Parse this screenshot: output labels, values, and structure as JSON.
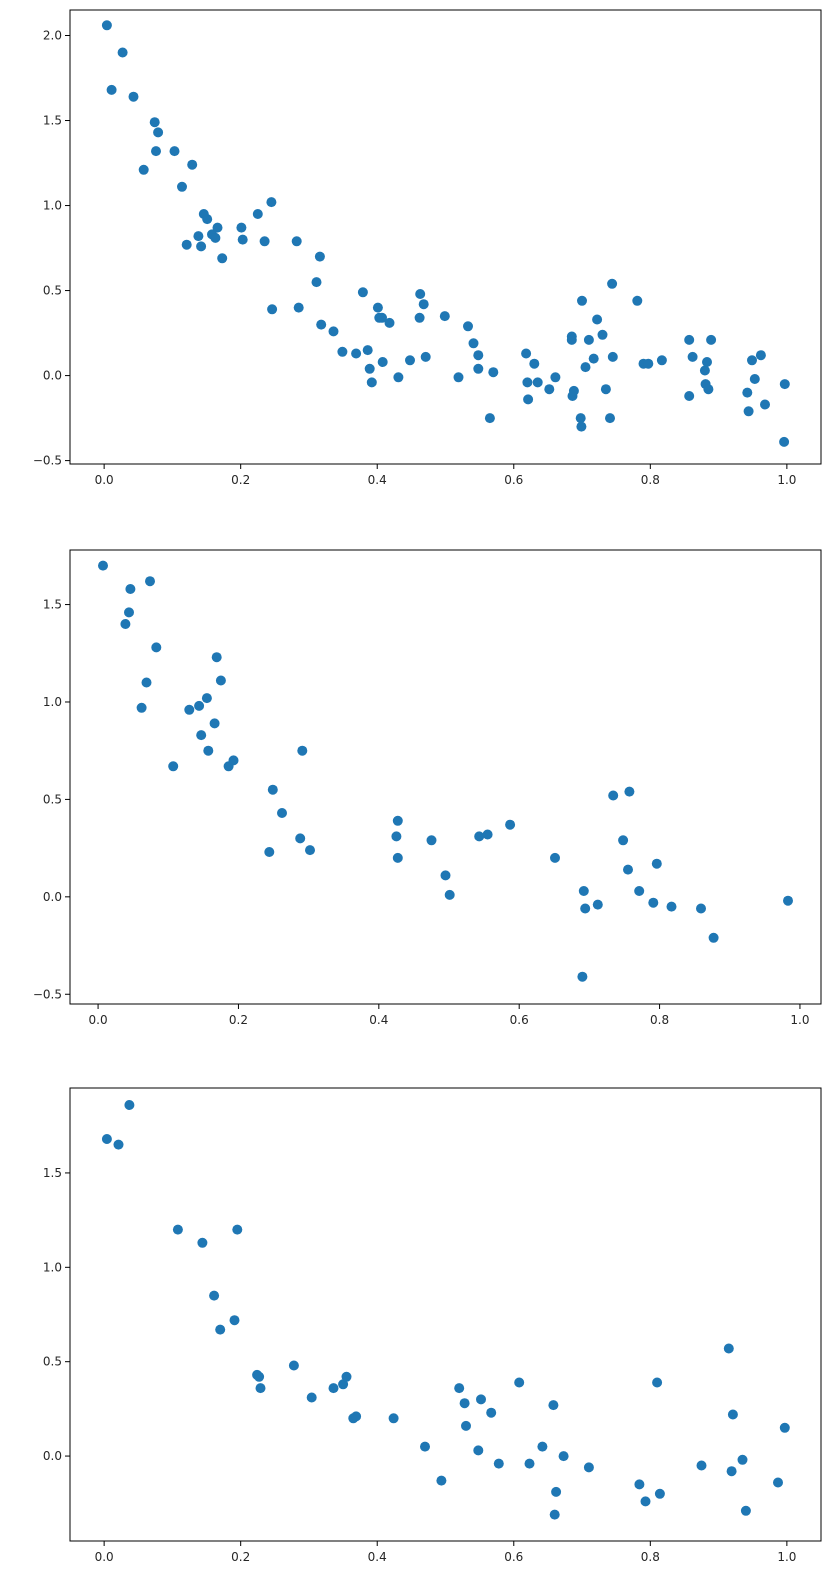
{
  "chart_data": [
    {
      "type": "scatter",
      "title": "",
      "xlabel": "",
      "ylabel": "",
      "xlim": [
        -0.05,
        1.05
      ],
      "ylim": [
        -0.52,
        2.15
      ],
      "grid": false,
      "legend": "none",
      "x_ticks": [
        0.0,
        0.2,
        0.4,
        0.6,
        0.8,
        1.0
      ],
      "x_tick_labels": [
        "0.0",
        "0.2",
        "0.4",
        "0.6",
        "0.8",
        "1.0"
      ],
      "y_ticks": [
        -0.5,
        0.0,
        0.5,
        1.0,
        1.5,
        2.0
      ],
      "y_tick_labels": [
        "−0.5",
        "0.0",
        "0.5",
        "1.0",
        "1.5",
        "2.0"
      ],
      "series": [
        {
          "color": "#1f77b4",
          "x": [
            0.004,
            0.011,
            0.027,
            0.043,
            0.058,
            0.074,
            0.076,
            0.079,
            0.103,
            0.114,
            0.121,
            0.129,
            0.138,
            0.142,
            0.146,
            0.151,
            0.158,
            0.163,
            0.166,
            0.173,
            0.201,
            0.203,
            0.225,
            0.235,
            0.245,
            0.246,
            0.282,
            0.285,
            0.311,
            0.316,
            0.318,
            0.336,
            0.349,
            0.369,
            0.379,
            0.386,
            0.389,
            0.392,
            0.401,
            0.403,
            0.407,
            0.408,
            0.418,
            0.431,
            0.448,
            0.462,
            0.463,
            0.468,
            0.471,
            0.499,
            0.519,
            0.533,
            0.541,
            0.548,
            0.548,
            0.565,
            0.57,
            0.618,
            0.62,
            0.621,
            0.63,
            0.635,
            0.652,
            0.661,
            0.685,
            0.685,
            0.686,
            0.688,
            0.698,
            0.699,
            0.7,
            0.705,
            0.71,
            0.717,
            0.722,
            0.73,
            0.735,
            0.741,
            0.744,
            0.745,
            0.781,
            0.79,
            0.797,
            0.817,
            0.857,
            0.857,
            0.862,
            0.88,
            0.881,
            0.883,
            0.885,
            0.889,
            0.942,
            0.944,
            0.949,
            0.953,
            0.962,
            0.968,
            0.996,
            0.997
          ],
          "y": [
            2.06,
            1.68,
            1.9,
            1.64,
            1.21,
            1.49,
            1.32,
            1.43,
            1.32,
            1.11,
            0.77,
            1.24,
            0.82,
            0.76,
            0.95,
            0.92,
            0.83,
            0.81,
            0.87,
            0.69,
            0.87,
            0.8,
            0.95,
            0.79,
            1.02,
            0.39,
            0.79,
            0.4,
            0.55,
            0.7,
            0.3,
            0.26,
            0.14,
            0.13,
            0.49,
            0.15,
            0.04,
            -0.04,
            0.4,
            0.34,
            0.34,
            0.08,
            0.31,
            -0.01,
            0.09,
            0.34,
            0.48,
            0.42,
            0.11,
            0.35,
            -0.01,
            0.29,
            0.19,
            0.12,
            0.04,
            -0.25,
            0.02,
            0.13,
            -0.04,
            -0.14,
            0.07,
            -0.04,
            -0.08,
            -0.01,
            0.23,
            0.21,
            -0.12,
            -0.09,
            -0.25,
            -0.3,
            0.44,
            0.05,
            0.21,
            0.1,
            0.33,
            0.24,
            -0.08,
            -0.25,
            0.54,
            0.11,
            0.44,
            0.07,
            0.07,
            0.09,
            0.21,
            -0.12,
            0.11,
            0.03,
            -0.05,
            0.08,
            -0.08,
            0.21,
            -0.1,
            -0.21,
            0.09,
            -0.02,
            0.12,
            -0.17,
            -0.39,
            -0.05
          ]
        }
      ]
    },
    {
      "type": "scatter",
      "title": "",
      "xlabel": "",
      "ylabel": "",
      "xlim": [
        -0.04,
        1.03
      ],
      "ylim": [
        -0.55,
        1.78
      ],
      "grid": false,
      "legend": "none",
      "x_ticks": [
        0.0,
        0.2,
        0.4,
        0.6,
        0.8,
        1.0
      ],
      "x_tick_labels": [
        "0.0",
        "0.2",
        "0.4",
        "0.6",
        "0.8",
        "1.0"
      ],
      "y_ticks": [
        -0.5,
        0.0,
        0.5,
        1.0,
        1.5
      ],
      "y_tick_labels": [
        "−0.5",
        "0.0",
        "0.5",
        "1.0",
        "1.5"
      ],
      "series": [
        {
          "color": "#1f77b4",
          "x": [
            0.007,
            0.039,
            0.044,
            0.046,
            0.062,
            0.069,
            0.074,
            0.083,
            0.107,
            0.13,
            0.144,
            0.147,
            0.155,
            0.157,
            0.166,
            0.169,
            0.175,
            0.186,
            0.193,
            0.244,
            0.249,
            0.262,
            0.288,
            0.291,
            0.302,
            0.425,
            0.427,
            0.427,
            0.475,
            0.495,
            0.501,
            0.543,
            0.555,
            0.587,
            0.651,
            0.69,
            0.692,
            0.694,
            0.712,
            0.734,
            0.748,
            0.755,
            0.757,
            0.771,
            0.791,
            0.796,
            0.817,
            0.859,
            0.877,
            0.983
          ],
          "y": [
            1.7,
            1.4,
            1.46,
            1.58,
            0.97,
            1.1,
            1.62,
            1.28,
            0.67,
            0.96,
            0.98,
            0.83,
            1.02,
            0.75,
            0.89,
            1.23,
            1.11,
            0.67,
            0.7,
            0.23,
            0.55,
            0.43,
            0.3,
            0.75,
            0.24,
            0.31,
            0.39,
            0.2,
            0.29,
            0.11,
            0.01,
            0.31,
            0.32,
            0.37,
            0.2,
            -0.41,
            0.03,
            -0.06,
            -0.04,
            0.52,
            0.29,
            0.14,
            0.54,
            0.03,
            -0.03,
            0.17,
            -0.05,
            -0.06,
            -0.21,
            -0.02
          ]
        }
      ]
    },
    {
      "type": "scatter",
      "title": "",
      "xlabel": "",
      "ylabel": "",
      "xlim": [
        -0.05,
        1.05
      ],
      "ylim": [
        -0.45,
        1.95
      ],
      "grid": false,
      "legend": "none",
      "x_ticks": [
        0.0,
        0.2,
        0.4,
        0.6,
        0.8,
        1.0
      ],
      "x_tick_labels": [
        "0.0",
        "0.2",
        "0.4",
        "0.6",
        "0.8",
        "1.0"
      ],
      "y_ticks": [
        0.0,
        0.5,
        1.0,
        1.5
      ],
      "y_tick_labels": [
        "0.0",
        "0.5",
        "1.0",
        "1.5"
      ],
      "series": [
        {
          "color": "#1f77b4",
          "x": [
            0.004,
            0.021,
            0.037,
            0.108,
            0.144,
            0.161,
            0.17,
            0.191,
            0.195,
            0.224,
            0.227,
            0.229,
            0.278,
            0.304,
            0.336,
            0.35,
            0.355,
            0.365,
            0.369,
            0.424,
            0.47,
            0.494,
            0.52,
            0.528,
            0.53,
            0.548,
            0.552,
            0.567,
            0.578,
            0.608,
            0.623,
            0.642,
            0.658,
            0.66,
            0.662,
            0.673,
            0.71,
            0.784,
            0.793,
            0.81,
            0.814,
            0.875,
            0.915,
            0.919,
            0.921,
            0.935,
            0.94,
            0.987,
            0.997
          ],
          "y": [
            1.68,
            1.65,
            1.86,
            1.2,
            1.13,
            0.85,
            0.67,
            0.72,
            1.2,
            0.43,
            0.42,
            0.36,
            0.48,
            0.31,
            0.36,
            0.38,
            0.42,
            0.2,
            0.21,
            0.2,
            0.05,
            -0.13,
            0.36,
            0.28,
            0.16,
            0.03,
            0.3,
            0.23,
            -0.04,
            0.39,
            -0.04,
            0.05,
            0.27,
            -0.31,
            -0.19,
            0.0,
            -0.06,
            -0.15,
            -0.24,
            0.39,
            -0.2,
            -0.05,
            0.57,
            -0.08,
            0.22,
            -0.02,
            -0.29,
            -0.14,
            0.15
          ]
        }
      ]
    }
  ]
}
